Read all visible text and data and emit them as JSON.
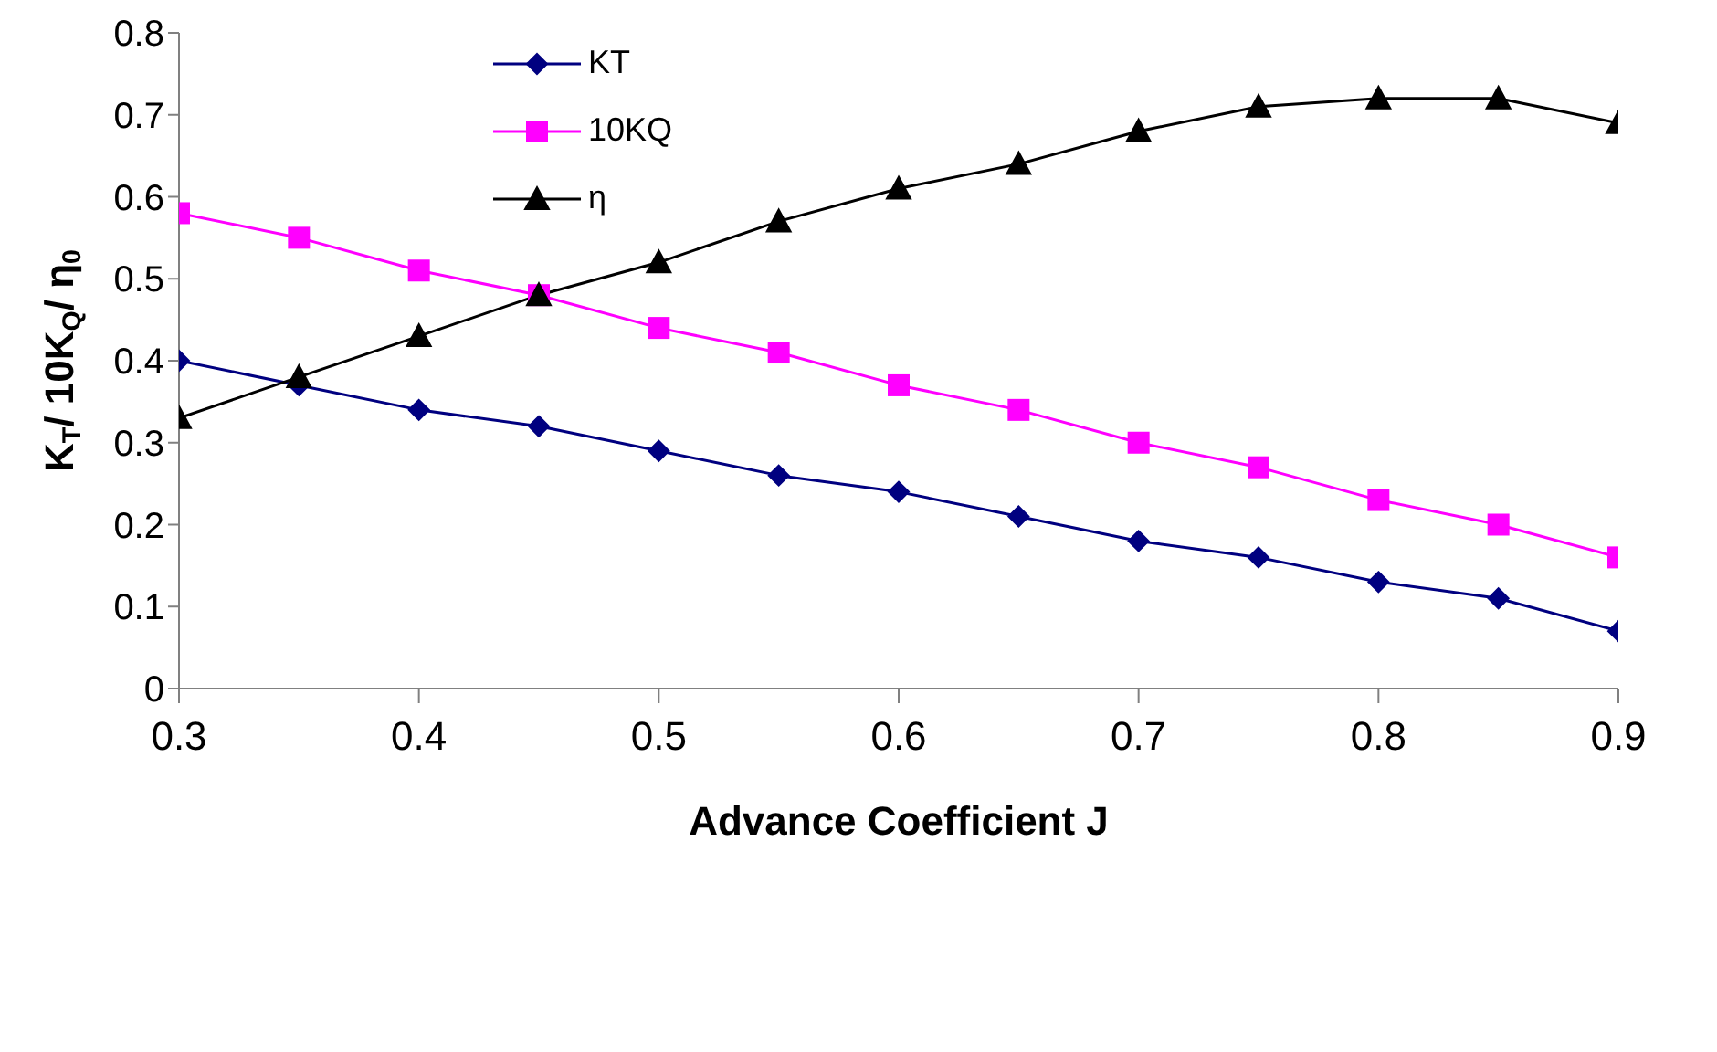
{
  "chart_data": {
    "type": "line",
    "xlabel": "Advance Coefficient J",
    "ylabel": "K$_{T}$/ 10K$_{Q}$/  η$_{0}$",
    "x": [
      0.3,
      0.35,
      0.4,
      0.45,
      0.5,
      0.55,
      0.6,
      0.65,
      0.7,
      0.75,
      0.8,
      0.85,
      0.9
    ],
    "series": [
      {
        "name": "KT",
        "color": "#000080",
        "marker": "diamond",
        "values": [
          0.4,
          0.37,
          0.34,
          0.32,
          0.29,
          0.26,
          0.24,
          0.21,
          0.18,
          0.16,
          0.13,
          0.11,
          0.07
        ]
      },
      {
        "name": "10KQ",
        "color": "#ff00ff",
        "marker": "square",
        "values": [
          0.58,
          0.55,
          0.51,
          0.48,
          0.44,
          0.41,
          0.37,
          0.34,
          0.3,
          0.27,
          0.23,
          0.2,
          0.16
        ]
      },
      {
        "name": "η",
        "color": "#000000",
        "marker": "triangle",
        "values": [
          0.33,
          0.38,
          0.43,
          0.48,
          0.52,
          0.57,
          0.61,
          0.64,
          0.68,
          0.71,
          0.72,
          0.72,
          0.69
        ]
      }
    ],
    "xlim": [
      0.3,
      0.9
    ],
    "xticks": [
      0.3,
      0.4,
      0.5,
      0.6,
      0.7,
      0.8,
      0.9
    ],
    "ylim": [
      0,
      0.8
    ],
    "yticks": [
      0,
      0.1,
      0.2,
      0.3,
      0.4,
      0.5,
      0.6,
      0.7,
      0.8
    ],
    "grid": false,
    "legend": "top"
  }
}
